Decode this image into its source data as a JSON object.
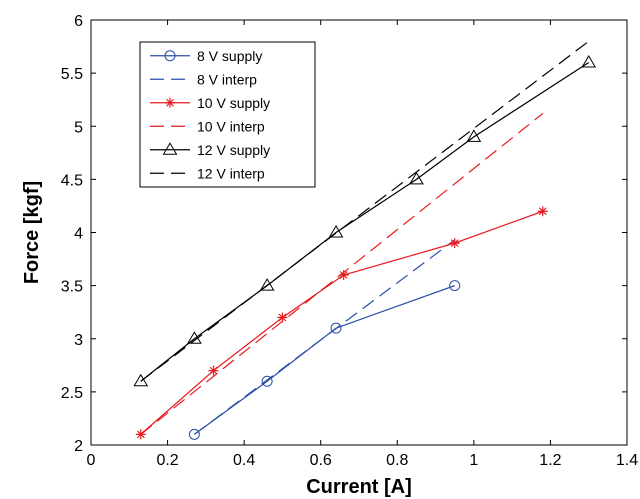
{
  "chart_data": {
    "type": "line",
    "title": "",
    "xlabel": "Current [A]",
    "ylabel": "Force [kgf]",
    "xlim": [
      0,
      1.4
    ],
    "ylim": [
      2,
      6
    ],
    "xticks": [
      0,
      0.2,
      0.4,
      0.6,
      0.8,
      1,
      1.2,
      1.4
    ],
    "xtick_labels": [
      "0",
      "0.2",
      "0.4",
      "0.6",
      "0.8",
      "1",
      "1.2",
      "1.4"
    ],
    "yticks": [
      2,
      2.5,
      3,
      3.5,
      4,
      4.5,
      5,
      5.5,
      6
    ],
    "ytick_labels": [
      "2",
      "2.5",
      "3",
      "3.5",
      "4",
      "4.5",
      "5",
      "5.5",
      "6"
    ],
    "grid": false,
    "legend_position": "top-left",
    "series": [
      {
        "name": "8 V supply",
        "color": "#2b4ea8",
        "line": "solid",
        "marker": "circle",
        "x": [
          0.27,
          0.46,
          0.64,
          0.95
        ],
        "y": [
          2.1,
          2.6,
          3.1,
          3.5
        ]
      },
      {
        "name": "8 V interp",
        "color": "#2b4ea8",
        "line": "dashed",
        "marker": "none",
        "x": [
          0.27,
          0.95
        ],
        "y": [
          2.1,
          3.93
        ]
      },
      {
        "name": "10 V supply",
        "color": "#e8191d",
        "line": "solid",
        "marker": "asterisk",
        "x": [
          0.13,
          0.32,
          0.5,
          0.66,
          0.95,
          1.18
        ],
        "y": [
          2.1,
          2.7,
          3.2,
          3.6,
          3.9,
          4.2
        ]
      },
      {
        "name": "10 V interp",
        "color": "#e8191d",
        "line": "dashed",
        "marker": "none",
        "x": [
          0.13,
          1.18
        ],
        "y": [
          2.1,
          5.12
        ]
      },
      {
        "name": "12 V supply",
        "color": "#000000",
        "line": "solid",
        "marker": "triangle",
        "x": [
          0.13,
          0.27,
          0.46,
          0.64,
          0.85,
          1.0,
          1.3
        ],
        "y": [
          2.6,
          3.0,
          3.5,
          4.0,
          4.5,
          4.9,
          5.6
        ]
      },
      {
        "name": "12 V interp",
        "color": "#000000",
        "line": "dashed",
        "marker": "none",
        "x": [
          0.13,
          1.3
        ],
        "y": [
          2.6,
          5.8
        ]
      }
    ]
  }
}
